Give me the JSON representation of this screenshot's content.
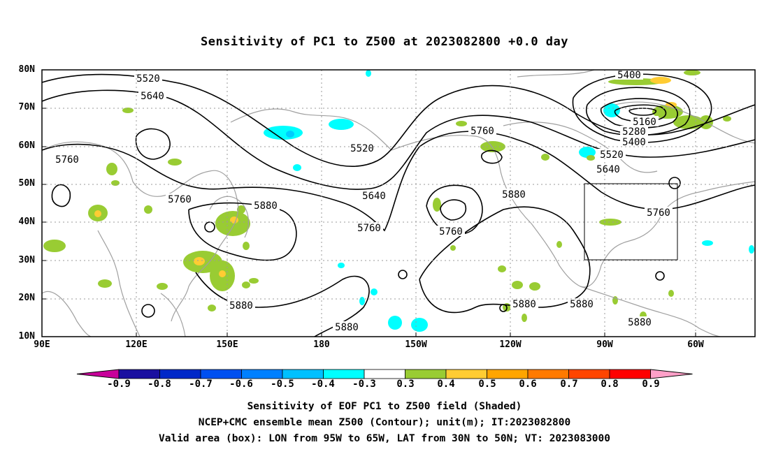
{
  "title": "Sensitivity of PC1 to Z500 at 2023082800 +0.0 day",
  "map": {
    "lon_labels": [
      "90E",
      "120E",
      "150E",
      "180",
      "150W",
      "120W",
      "90W",
      "60W"
    ],
    "lat_labels": [
      "80N",
      "70N",
      "60N",
      "50N",
      "40N",
      "30N",
      "20N",
      "10N"
    ],
    "contour_labels": [
      "5400",
      "5520",
      "5520",
      "5640",
      "5640",
      "5640",
      "5160",
      "5280",
      "5400",
      "5520",
      "5760",
      "5760",
      "5760",
      "5760",
      "5760",
      "5760",
      "5880",
      "5880",
      "5880",
      "5880",
      "5880",
      "5880",
      "5880"
    ],
    "box_color": "#000000",
    "coast_color": "#a0a0a0",
    "contour_color": "#000000",
    "shade_colors": {
      "pos_0_3": "#99cc33",
      "pos_0_4": "#ffcc33",
      "neg_0_3": "#00ffff",
      "neg_0_4": "#00ccff"
    }
  },
  "colorbar": {
    "labels": [
      "-0.9",
      "-0.8",
      "-0.7",
      "-0.6",
      "-0.5",
      "-0.4",
      "-0.3",
      "0.3",
      "0.4",
      "0.5",
      "0.6",
      "0.7",
      "0.8",
      "0.9"
    ],
    "colors": [
      "#c8009a",
      "#1a0fa0",
      "#0028c8",
      "#0050f0",
      "#0080ff",
      "#00c0ff",
      "#00ffff",
      "#ffffff",
      "#99cc33",
      "#ffcc33",
      "#ffa500",
      "#ff7a00",
      "#ff4500",
      "#ff0000",
      "#ffa0c8"
    ]
  },
  "footer": {
    "line1": "Sensitivity of EOF PC1 to Z500 field (Shaded)",
    "line2": "NCEP+CMC ensemble mean Z500 (Contour); unit(m); IT:2023082800",
    "line3": "Valid area (box): LON from 95W to 65W, LAT from 30N to 50N; VT: 2023083000"
  }
}
